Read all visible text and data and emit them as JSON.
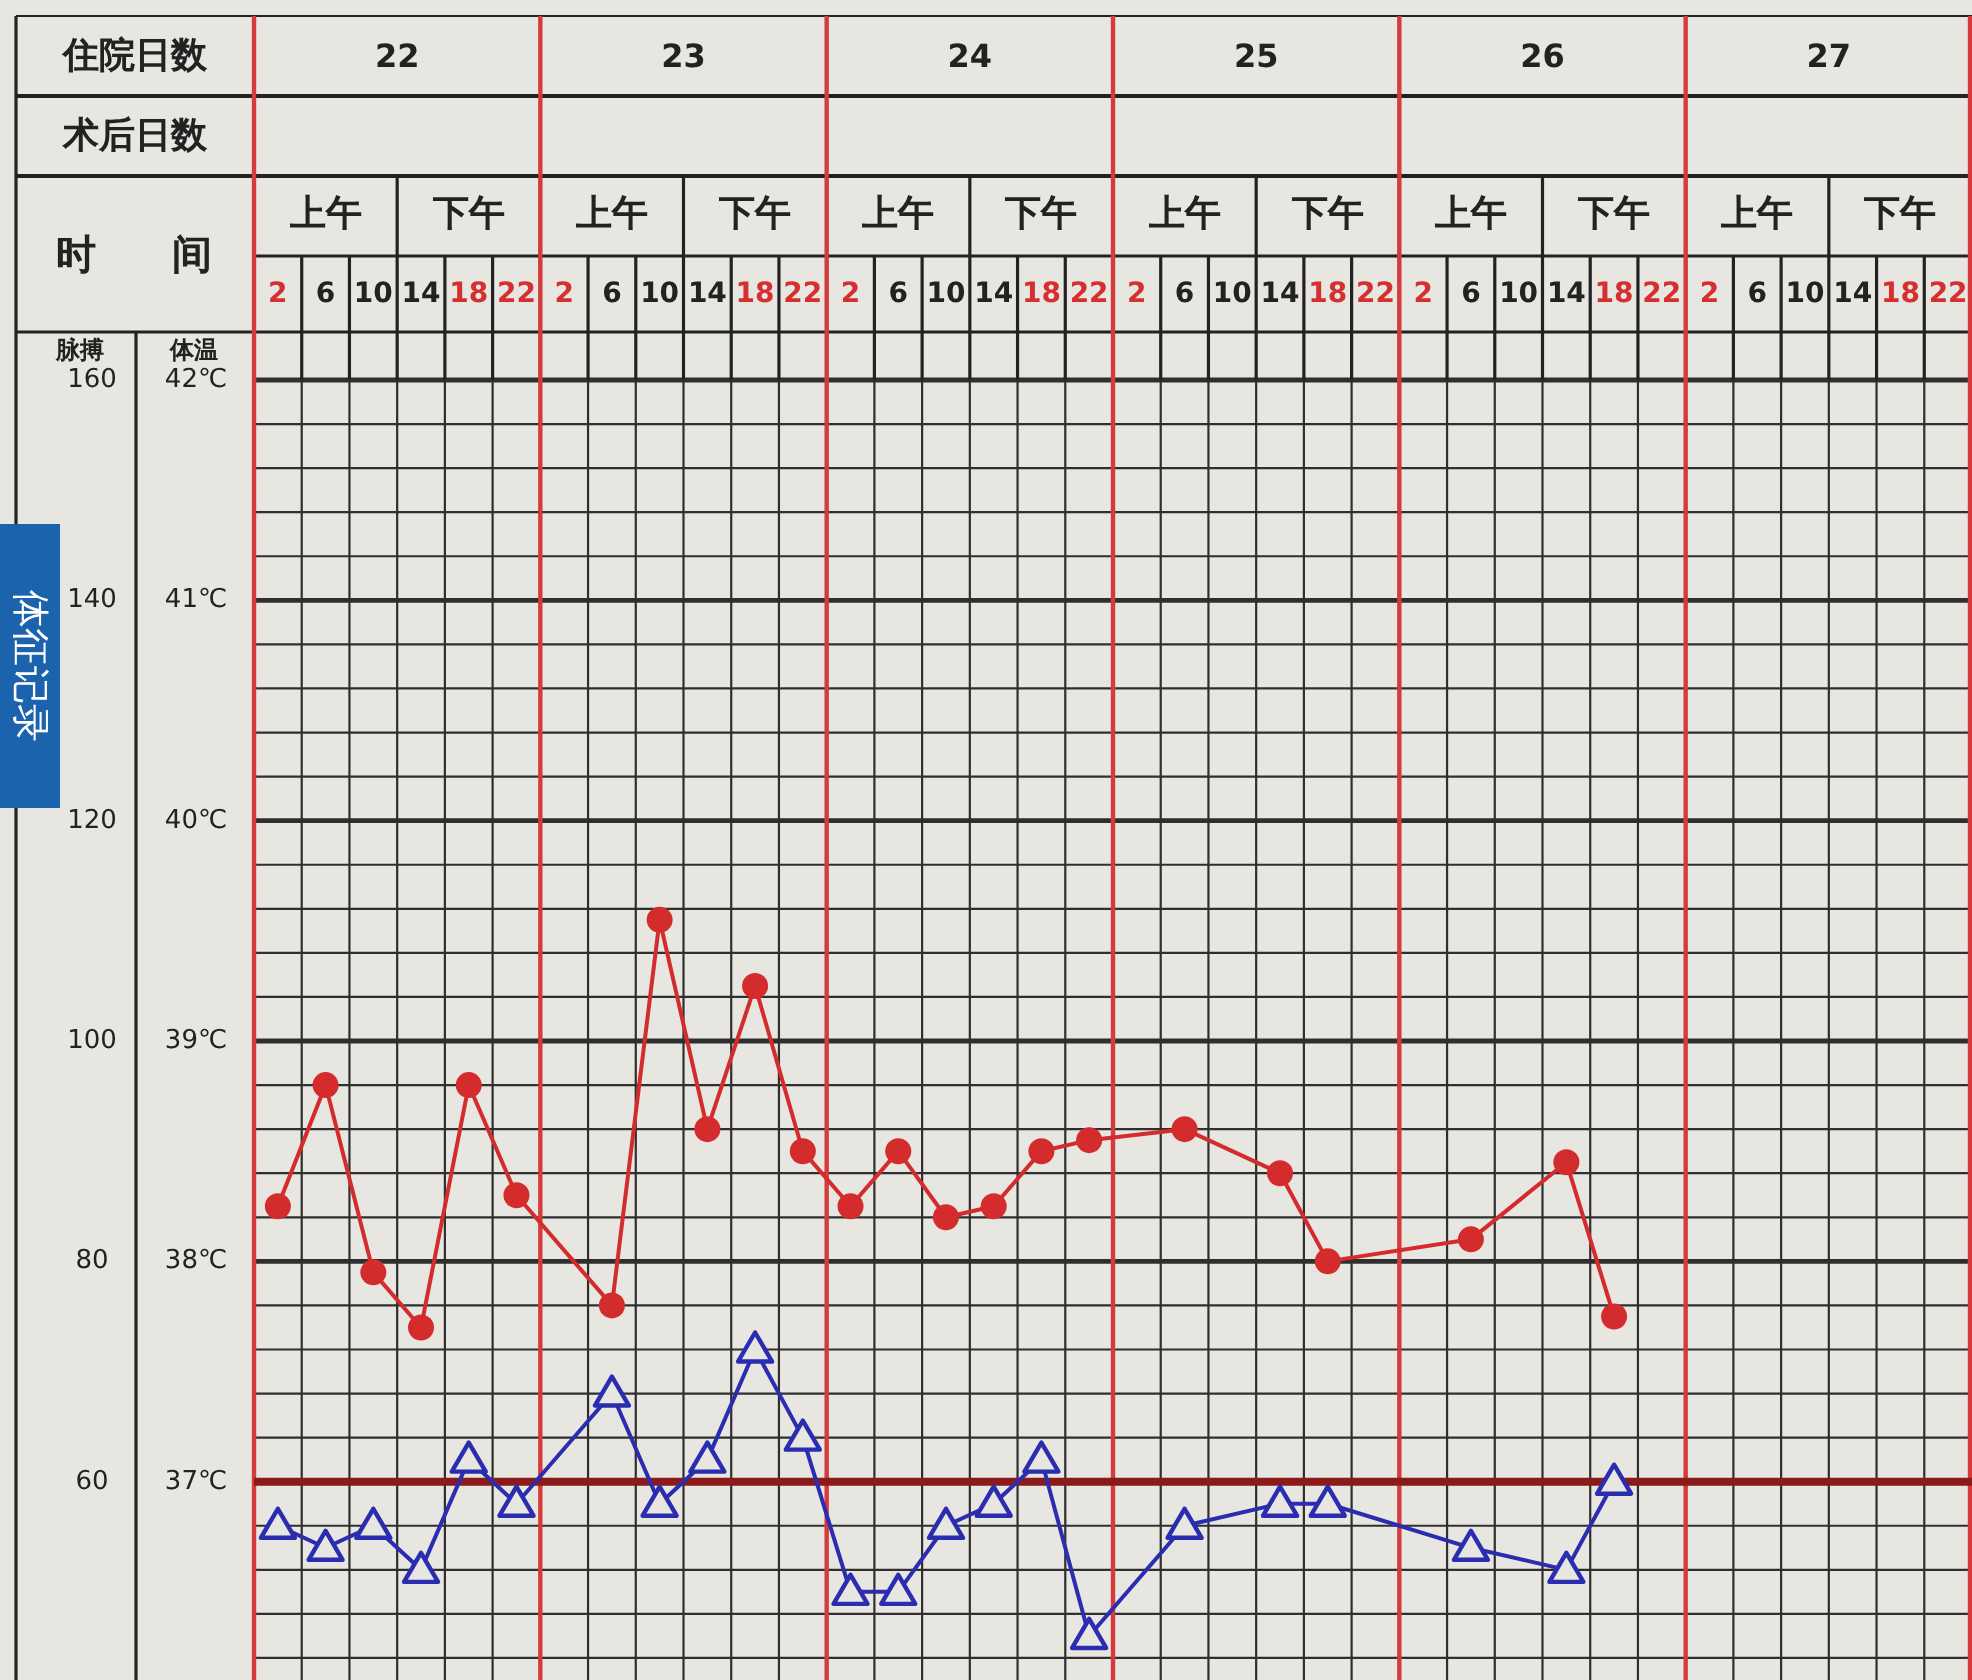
{
  "chart_data": {
    "type": "line",
    "xlabel": "时间",
    "ylabel": "脉搏",
    "y2label": "体温",
    "categories": [
      "2",
      "6",
      "10",
      "14",
      "18",
      "22",
      "2",
      "6",
      "10",
      "14",
      "18",
      "22",
      "2",
      "6",
      "10",
      "14",
      "18",
      "22",
      "2",
      "6",
      "10",
      "14",
      "18",
      "22",
      "2",
      "6",
      "10",
      "14",
      "18",
      "22",
      "2",
      "6",
      "10",
      "14",
      "18",
      "22"
    ],
    "ylim": [
      42,
      160
    ],
    "yticks": [
      {
        "value": 44,
        "label": null
      },
      {
        "value": 48,
        "label": null
      },
      {
        "value": 52,
        "label": null
      },
      {
        "value": 56,
        "label": null
      },
      60,
      {
        "value": 64,
        "label": null
      },
      {
        "value": 68,
        "label": null
      },
      {
        "value": 72,
        "label": null
      },
      {
        "value": 76,
        "label": null
      },
      80,
      {
        "value": 84,
        "label": null
      },
      {
        "value": 88,
        "label": null
      },
      {
        "value": 92,
        "label": null
      },
      {
        "value": 96,
        "label": null
      },
      100,
      {
        "value": 104,
        "label": null
      },
      {
        "value": 108,
        "label": null
      },
      {
        "value": 112,
        "label": null
      },
      {
        "value": 116,
        "label": null
      },
      120,
      {
        "value": 124,
        "label": null
      },
      {
        "value": 128,
        "label": null
      },
      {
        "value": 132,
        "label": null
      },
      {
        "value": 136,
        "label": null
      },
      140,
      {
        "value": 144,
        "label": null
      },
      {
        "value": 148,
        "label": null
      },
      {
        "value": 152,
        "label": null
      },
      {
        "value": 156,
        "label": null
      },
      160
    ],
    "y2lim": [
      36.1,
      42
    ],
    "y2ticks": [
      {
        "value": 37,
        "label": "37℃"
      },
      {
        "value": 38,
        "label": "38℃"
      },
      {
        "value": 39,
        "label": "39℃"
      },
      {
        "value": 40,
        "label": "40℃"
      },
      {
        "value": 41,
        "label": "41℃"
      },
      {
        "value": 42,
        "label": "42℃"
      }
    ],
    "grid": true,
    "ref_lines": [
      {
        "axis": "y2",
        "value": 37,
        "color": "#8b1a1a"
      }
    ],
    "annotations": [
      "住院日数",
      "术后日数",
      "体征记录",
      "22",
      "23",
      "24",
      "25",
      "26",
      "27",
      "上午",
      "下午",
      "上午",
      "下午",
      "上午",
      "下午",
      "上午",
      "下午",
      "上午",
      "下午",
      "上午",
      "下午"
    ],
    "series": [
      {
        "color": "#d42c2c",
        "marker": "circle",
        "values": [
          85,
          96,
          79,
          74,
          96,
          86,
          null,
          76,
          111,
          92,
          105,
          90,
          85,
          90,
          84,
          85,
          90,
          91,
          null,
          92,
          null,
          88,
          80,
          null,
          null,
          82,
          null,
          89,
          75,
          null,
          null,
          null,
          null,
          null,
          null,
          null
        ]
      },
      {
        "color": "#2b2db0",
        "marker": "triangle",
        "axis": "y2",
        "values": [
          36.8,
          36.7,
          36.8,
          36.6,
          37.1,
          36.9,
          null,
          37.4,
          36.9,
          37.1,
          37.6,
          37.2,
          36.5,
          36.5,
          36.8,
          36.9,
          37.1,
          36.3,
          null,
          36.8,
          null,
          36.9,
          36.9,
          null,
          null,
          36.7,
          null,
          36.6,
          37.0,
          null,
          null,
          null,
          null,
          null,
          null,
          null
        ]
      }
    ]
  }
}
